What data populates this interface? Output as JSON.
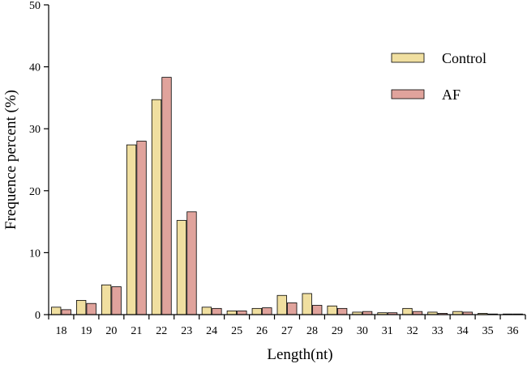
{
  "chart_data": {
    "type": "bar",
    "title": "",
    "xlabel": "Length(nt)",
    "ylabel": "Frequence percent (%)",
    "ylim": [
      0,
      50
    ],
    "yticks": [
      0,
      10,
      20,
      30,
      40,
      50
    ],
    "grid": false,
    "legend_position": "top-right",
    "categories": [
      "18",
      "19",
      "20",
      "21",
      "22",
      "23",
      "24",
      "25",
      "26",
      "27",
      "28",
      "29",
      "30",
      "31",
      "32",
      "33",
      "34",
      "35",
      "36"
    ],
    "series": [
      {
        "name": "Control",
        "color": "#f0dfa0",
        "values": [
          1.2,
          2.3,
          4.8,
          27.4,
          34.7,
          15.2,
          1.2,
          0.6,
          1.0,
          3.1,
          3.4,
          1.4,
          0.4,
          0.3,
          1.0,
          0.4,
          0.5,
          0.2,
          0.1
        ]
      },
      {
        "name": "AF",
        "color": "#e0a39c",
        "values": [
          0.8,
          1.8,
          4.5,
          28.0,
          38.3,
          16.6,
          1.0,
          0.6,
          1.1,
          1.9,
          1.5,
          1.0,
          0.5,
          0.3,
          0.5,
          0.2,
          0.4,
          0.1,
          0.1
        ]
      }
    ]
  }
}
